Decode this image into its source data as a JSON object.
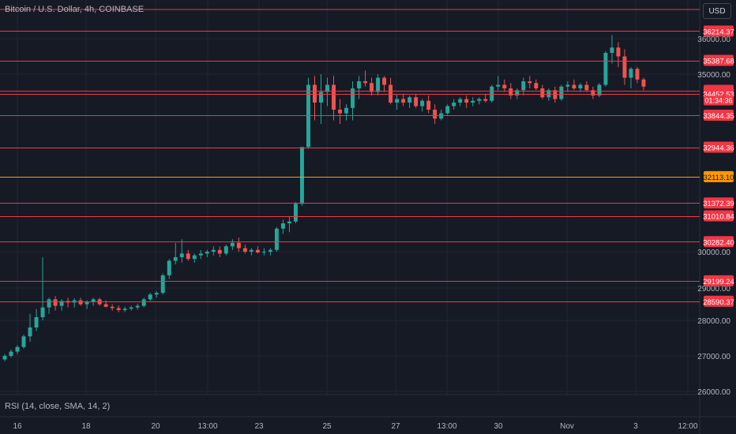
{
  "header": {
    "symbol_title": "Bitcoin / U.S. Dollar, 4h, COINBASE"
  },
  "currency_button": "USD",
  "indicator": {
    "label": "RSI (14, close, SMA, 14, 2)"
  },
  "countdown": "01:34:36",
  "colors": {
    "background": "#161a25",
    "grid": "#222632",
    "up": "#26a69a",
    "down": "#ef5350",
    "level_line": "#f23645",
    "highlight_line": "#ff9800",
    "axis_text": "#b2b5be"
  },
  "chart_data": {
    "type": "candlestick",
    "title": "Bitcoin / U.S. Dollar, 4h, COINBASE",
    "ylim": [
      25800,
      36600
    ],
    "yticks": [
      26000,
      27000,
      28000,
      29000,
      30000,
      35000,
      36000
    ],
    "ytick_labels": [
      "26000.00",
      "27000.00",
      "28000.00",
      "29000.00",
      "30000.00",
      "35000.00",
      "36000.00"
    ],
    "xticks": [
      {
        "label": "16",
        "t": 0
      },
      {
        "label": "18",
        "t": 1
      },
      {
        "label": "20",
        "t": 2
      },
      {
        "label": "13:00",
        "t": 3
      },
      {
        "label": "23",
        "t": 4
      },
      {
        "label": "25",
        "t": 5
      },
      {
        "label": "27",
        "t": 6
      },
      {
        "label": "13:00",
        "t": 7
      },
      {
        "label": "30",
        "t": 8
      },
      {
        "label": "Nov",
        "t": 9
      },
      {
        "label": "3",
        "t": 10
      },
      {
        "label": "12:00",
        "t": 11
      }
    ],
    "levels": [
      {
        "value": 36214.37,
        "label": "36214.37"
      },
      {
        "value": 35387.68,
        "label": "35387.68"
      },
      {
        "value": 34543.22,
        "label": "34543.22"
      },
      {
        "value": 34452.53,
        "label": "34452.53"
      },
      {
        "value": 33844.35,
        "label": "33844.35"
      },
      {
        "value": 32944.36,
        "label": "32944.36"
      },
      {
        "value": 32113.1,
        "label": "32113.10",
        "highlight": true
      },
      {
        "value": 31372.39,
        "label": "31372.39"
      },
      {
        "value": 31010.84,
        "label": "31010.84"
      },
      {
        "value": 30282.4,
        "label": "30282.40"
      },
      {
        "value": 29199.24,
        "label": "29199.24"
      },
      {
        "value": 28590.37,
        "label": "28590.37"
      }
    ],
    "top_line_value": 36800,
    "candles": [
      [
        26900,
        27050,
        26850,
        27000
      ],
      [
        27000,
        27180,
        26950,
        27120
      ],
      [
        27120,
        27300,
        27050,
        27250
      ],
      [
        27250,
        27600,
        27200,
        27550
      ],
      [
        27550,
        28200,
        27400,
        27800
      ],
      [
        27800,
        28350,
        27700,
        28100
      ],
      [
        28100,
        29850,
        28000,
        28400
      ],
      [
        28400,
        28700,
        28200,
        28650
      ],
      [
        28650,
        28750,
        28300,
        28450
      ],
      [
        28450,
        28650,
        28300,
        28600
      ],
      [
        28600,
        28700,
        28400,
        28550
      ],
      [
        28550,
        28680,
        28400,
        28620
      ],
      [
        28620,
        28700,
        28450,
        28500
      ],
      [
        28500,
        28620,
        28350,
        28580
      ],
      [
        28580,
        28700,
        28450,
        28650
      ],
      [
        28650,
        28700,
        28450,
        28500
      ],
      [
        28500,
        28620,
        28400,
        28420
      ],
      [
        28420,
        28500,
        28300,
        28380
      ],
      [
        28380,
        28460,
        28250,
        28320
      ],
      [
        28320,
        28420,
        28250,
        28360
      ],
      [
        28360,
        28450,
        28300,
        28400
      ],
      [
        28400,
        28520,
        28330,
        28450
      ],
      [
        28450,
        28700,
        28400,
        28650
      ],
      [
        28650,
        28850,
        28600,
        28800
      ],
      [
        28800,
        28900,
        28700,
        28850
      ],
      [
        28850,
        29400,
        28800,
        29350
      ],
      [
        29350,
        29800,
        29250,
        29750
      ],
      [
        29750,
        30250,
        29650,
        29850
      ],
      [
        29850,
        30350,
        29700,
        29950
      ],
      [
        29950,
        30050,
        29750,
        29800
      ],
      [
        29800,
        29950,
        29700,
        29900
      ],
      [
        29900,
        30050,
        29800,
        29950
      ],
      [
        29950,
        30050,
        29850,
        30000
      ],
      [
        30000,
        30150,
        29900,
        30050
      ],
      [
        30050,
        30150,
        29850,
        29950
      ],
      [
        29950,
        30200,
        29900,
        30150
      ],
      [
        30150,
        30350,
        30050,
        30250
      ],
      [
        30250,
        30400,
        30000,
        30100
      ],
      [
        30100,
        30200,
        29950,
        30000
      ],
      [
        30000,
        30100,
        29900,
        30050
      ],
      [
        30050,
        30150,
        29950,
        29980
      ],
      [
        29980,
        30100,
        29900,
        30000
      ],
      [
        30000,
        30100,
        29900,
        30050
      ],
      [
        30050,
        30700,
        30000,
        30650
      ],
      [
        30650,
        30900,
        30500,
        30800
      ],
      [
        30800,
        31000,
        30550,
        30850
      ],
      [
        30850,
        31400,
        30800,
        31350
      ],
      [
        31350,
        32950,
        31300,
        32950
      ],
      [
        32950,
        34900,
        32900,
        34700
      ],
      [
        34700,
        34950,
        33700,
        34200
      ],
      [
        34200,
        35000,
        33600,
        34500
      ],
      [
        34500,
        34900,
        34100,
        34700
      ],
      [
        34700,
        34950,
        33700,
        34000
      ],
      [
        34000,
        34300,
        33600,
        33900
      ],
      [
        33900,
        34150,
        33700,
        34050
      ],
      [
        34050,
        34800,
        33700,
        34600
      ],
      [
        34600,
        34950,
        34300,
        34800
      ],
      [
        34800,
        35100,
        34650,
        34750
      ],
      [
        34750,
        34900,
        34400,
        34500
      ],
      [
        34500,
        35000,
        34400,
        34900
      ],
      [
        34900,
        34950,
        34500,
        34700
      ],
      [
        34700,
        34900,
        34150,
        34200
      ],
      [
        34200,
        34450,
        34000,
        34300
      ],
      [
        34300,
        34450,
        34100,
        34200
      ],
      [
        34200,
        34400,
        34050,
        34350
      ],
      [
        34350,
        34450,
        34050,
        34100
      ],
      [
        34100,
        34300,
        33950,
        34250
      ],
      [
        34250,
        34400,
        33900,
        34000
      ],
      [
        34000,
        34150,
        33600,
        33750
      ],
      [
        33750,
        34000,
        33700,
        33900
      ],
      [
        33900,
        34150,
        33850,
        34100
      ],
      [
        34100,
        34300,
        34000,
        34200
      ],
      [
        34200,
        34350,
        34100,
        34300
      ],
      [
        34300,
        34400,
        34050,
        34200
      ],
      [
        34200,
        34350,
        34100,
        34250
      ],
      [
        34250,
        34350,
        34150,
        34300
      ],
      [
        34300,
        34450,
        34200,
        34250
      ],
      [
        34250,
        34700,
        34200,
        34650
      ],
      [
        34650,
        34950,
        34550,
        34700
      ],
      [
        34700,
        34850,
        34500,
        34600
      ],
      [
        34600,
        34750,
        34300,
        34400
      ],
      [
        34400,
        34600,
        34300,
        34550
      ],
      [
        34550,
        34900,
        34400,
        34800
      ],
      [
        34800,
        34950,
        34600,
        34750
      ],
      [
        34750,
        34850,
        34550,
        34600
      ],
      [
        34600,
        34700,
        34300,
        34350
      ],
      [
        34350,
        34600,
        34250,
        34550
      ],
      [
        34550,
        34650,
        34200,
        34300
      ],
      [
        34300,
        34700,
        34250,
        34650
      ],
      [
        34650,
        34800,
        34500,
        34700
      ],
      [
        34700,
        34850,
        34550,
        34600
      ],
      [
        34600,
        34750,
        34500,
        34700
      ],
      [
        34700,
        34800,
        34500,
        34550
      ],
      [
        34550,
        34650,
        34300,
        34400
      ],
      [
        34400,
        34750,
        34350,
        34700
      ],
      [
        34700,
        35650,
        34650,
        35600
      ],
      [
        35600,
        36100,
        35300,
        35750
      ],
      [
        35750,
        35900,
        35200,
        35500
      ],
      [
        35500,
        35700,
        34700,
        34900
      ],
      [
        34900,
        35200,
        34600,
        35150
      ],
      [
        35150,
        35200,
        34750,
        34850
      ],
      [
        34850,
        34900,
        34550,
        34650
      ]
    ]
  }
}
